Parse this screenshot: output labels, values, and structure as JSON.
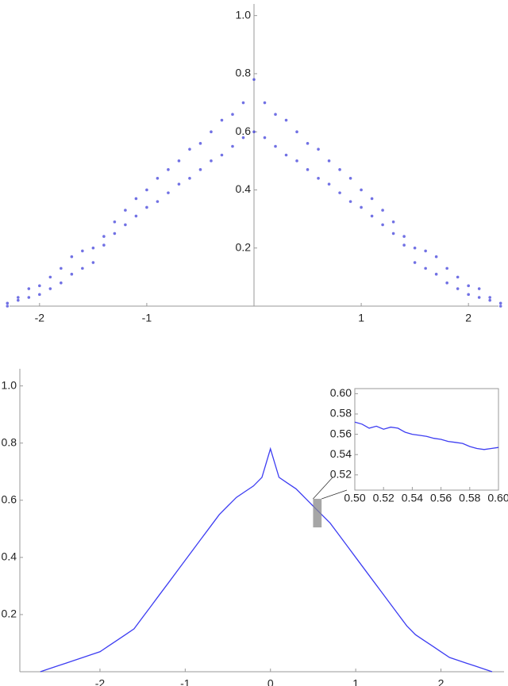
{
  "chart_data": [
    {
      "type": "scatter",
      "axes": "origin",
      "color": "#3434d8",
      "xlim": [
        -2.28,
        2.28
      ],
      "ylim": [
        0,
        1.04
      ],
      "xticks": [
        -2,
        -1,
        1,
        2
      ],
      "yticks": [
        0.2,
        0.4,
        0.6,
        0.8,
        {
          "value": 1,
          "label": "1.0"
        }
      ],
      "x": [
        -2.3,
        -2.3,
        -2.2,
        -2.2,
        -2.1,
        -2.1,
        -2.0,
        -2.0,
        -1.9,
        -1.9,
        -1.8,
        -1.8,
        -1.7,
        -1.7,
        -1.6,
        -1.6,
        -1.5,
        -1.5,
        -1.4,
        -1.4,
        -1.3,
        -1.3,
        -1.2,
        -1.2,
        -1.1,
        -1.1,
        -1.0,
        -1.0,
        -0.9,
        -0.9,
        -0.8,
        -0.8,
        -0.7,
        -0.7,
        -0.6,
        -0.6,
        -0.5,
        -0.5,
        -0.4,
        -0.4,
        -0.3,
        -0.3,
        -0.2,
        -0.2,
        -0.1,
        -0.1,
        0.0,
        0.0,
        0.1,
        0.1,
        0.2,
        0.2,
        0.3,
        0.3,
        0.4,
        0.4,
        0.5,
        0.5,
        0.6,
        0.6,
        0.7,
        0.7,
        0.8,
        0.8,
        0.9,
        0.9,
        1.0,
        1.0,
        1.1,
        1.1,
        1.2,
        1.2,
        1.3,
        1.3,
        1.4,
        1.4,
        1.5,
        1.5,
        1.6,
        1.6,
        1.7,
        1.7,
        1.8,
        1.8,
        1.9,
        1.9,
        2.0,
        2.0,
        2.1,
        2.1,
        2.2,
        2.2,
        2.3,
        2.3
      ],
      "values": [
        0.01,
        0.0,
        0.03,
        0.02,
        0.06,
        0.03,
        0.07,
        0.04,
        0.1,
        0.06,
        0.13,
        0.08,
        0.17,
        0.11,
        0.19,
        0.13,
        0.2,
        0.15,
        0.24,
        0.21,
        0.29,
        0.25,
        0.33,
        0.28,
        0.37,
        0.31,
        0.4,
        0.34,
        0.44,
        0.36,
        0.47,
        0.39,
        0.5,
        0.42,
        0.54,
        0.44,
        0.56,
        0.47,
        0.6,
        0.5,
        0.64,
        0.52,
        0.66,
        0.55,
        0.7,
        0.58,
        0.78,
        0.6,
        0.7,
        0.58,
        0.66,
        0.55,
        0.64,
        0.52,
        0.6,
        0.5,
        0.56,
        0.47,
        0.54,
        0.44,
        0.5,
        0.42,
        0.47,
        0.39,
        0.44,
        0.36,
        0.4,
        0.34,
        0.37,
        0.31,
        0.33,
        0.28,
        0.29,
        0.25,
        0.24,
        0.21,
        0.2,
        0.15,
        0.19,
        0.13,
        0.17,
        0.11,
        0.13,
        0.08,
        0.1,
        0.06,
        0.07,
        0.04,
        0.06,
        0.03,
        0.03,
        0.02,
        0.01,
        0.0
      ]
    },
    {
      "type": "line",
      "axes": "edge",
      "color": "#3d3df2",
      "xlim": [
        -2.94,
        2.74
      ],
      "ylim": [
        0,
        1.06
      ],
      "xticks": [
        -2,
        -1,
        0,
        1,
        2
      ],
      "yticks": [
        0.2,
        0.4,
        0.6,
        0.8,
        {
          "value": 1,
          "label": "1.0"
        }
      ],
      "x": [
        -2.7,
        -2.6,
        -2.5,
        -2.4,
        -2.3,
        -2.2,
        -2.1,
        -2.0,
        -1.9,
        -1.8,
        -1.7,
        -1.6,
        -1.5,
        -1.4,
        -1.3,
        -1.2,
        -1.1,
        -1.0,
        -0.9,
        -0.8,
        -0.7,
        -0.6,
        -0.5,
        -0.4,
        -0.3,
        -0.2,
        -0.1,
        0.0,
        0.1,
        0.2,
        0.3,
        0.4,
        0.5,
        0.6,
        0.7,
        0.8,
        0.9,
        1.0,
        1.1,
        1.2,
        1.3,
        1.4,
        1.5,
        1.6,
        1.7,
        1.8,
        1.9,
        2.0,
        2.1,
        2.2,
        2.3,
        2.4,
        2.5,
        2.6
      ],
      "values": [
        0.0,
        0.01,
        0.02,
        0.03,
        0.04,
        0.05,
        0.06,
        0.07,
        0.09,
        0.11,
        0.13,
        0.15,
        0.19,
        0.23,
        0.27,
        0.31,
        0.35,
        0.39,
        0.43,
        0.47,
        0.51,
        0.55,
        0.58,
        0.61,
        0.63,
        0.65,
        0.68,
        0.78,
        0.68,
        0.66,
        0.64,
        0.61,
        0.58,
        0.55,
        0.52,
        0.48,
        0.44,
        0.4,
        0.36,
        0.32,
        0.28,
        0.24,
        0.2,
        0.16,
        0.13,
        0.11,
        0.09,
        0.07,
        0.05,
        0.04,
        0.03,
        0.02,
        0.01,
        0.0
      ],
      "inset": {
        "type": "line",
        "axes": "frame",
        "color": "#3d3df2",
        "xlim": [
          0.5,
          0.6
        ],
        "ylim": [
          0.505,
          0.605
        ],
        "xticks": [
          {
            "value": 0.5,
            "label": "0.50"
          },
          0.52,
          0.54,
          0.56,
          0.58,
          {
            "value": 0.6,
            "label": "0.60"
          }
        ],
        "yticks": [
          0.52,
          0.54,
          0.56,
          0.58,
          {
            "value": 0.6,
            "label": "0.60"
          }
        ],
        "x": [
          0.5,
          0.505,
          0.51,
          0.515,
          0.52,
          0.525,
          0.53,
          0.535,
          0.54,
          0.545,
          0.55,
          0.555,
          0.56,
          0.565,
          0.57,
          0.575,
          0.58,
          0.585,
          0.59,
          0.595,
          0.6
        ],
        "values": [
          0.572,
          0.57,
          0.566,
          0.568,
          0.565,
          0.567,
          0.566,
          0.562,
          0.56,
          0.559,
          0.558,
          0.556,
          0.555,
          0.553,
          0.552,
          0.551,
          0.548,
          0.546,
          0.545,
          0.546,
          0.547
        ]
      }
    }
  ]
}
